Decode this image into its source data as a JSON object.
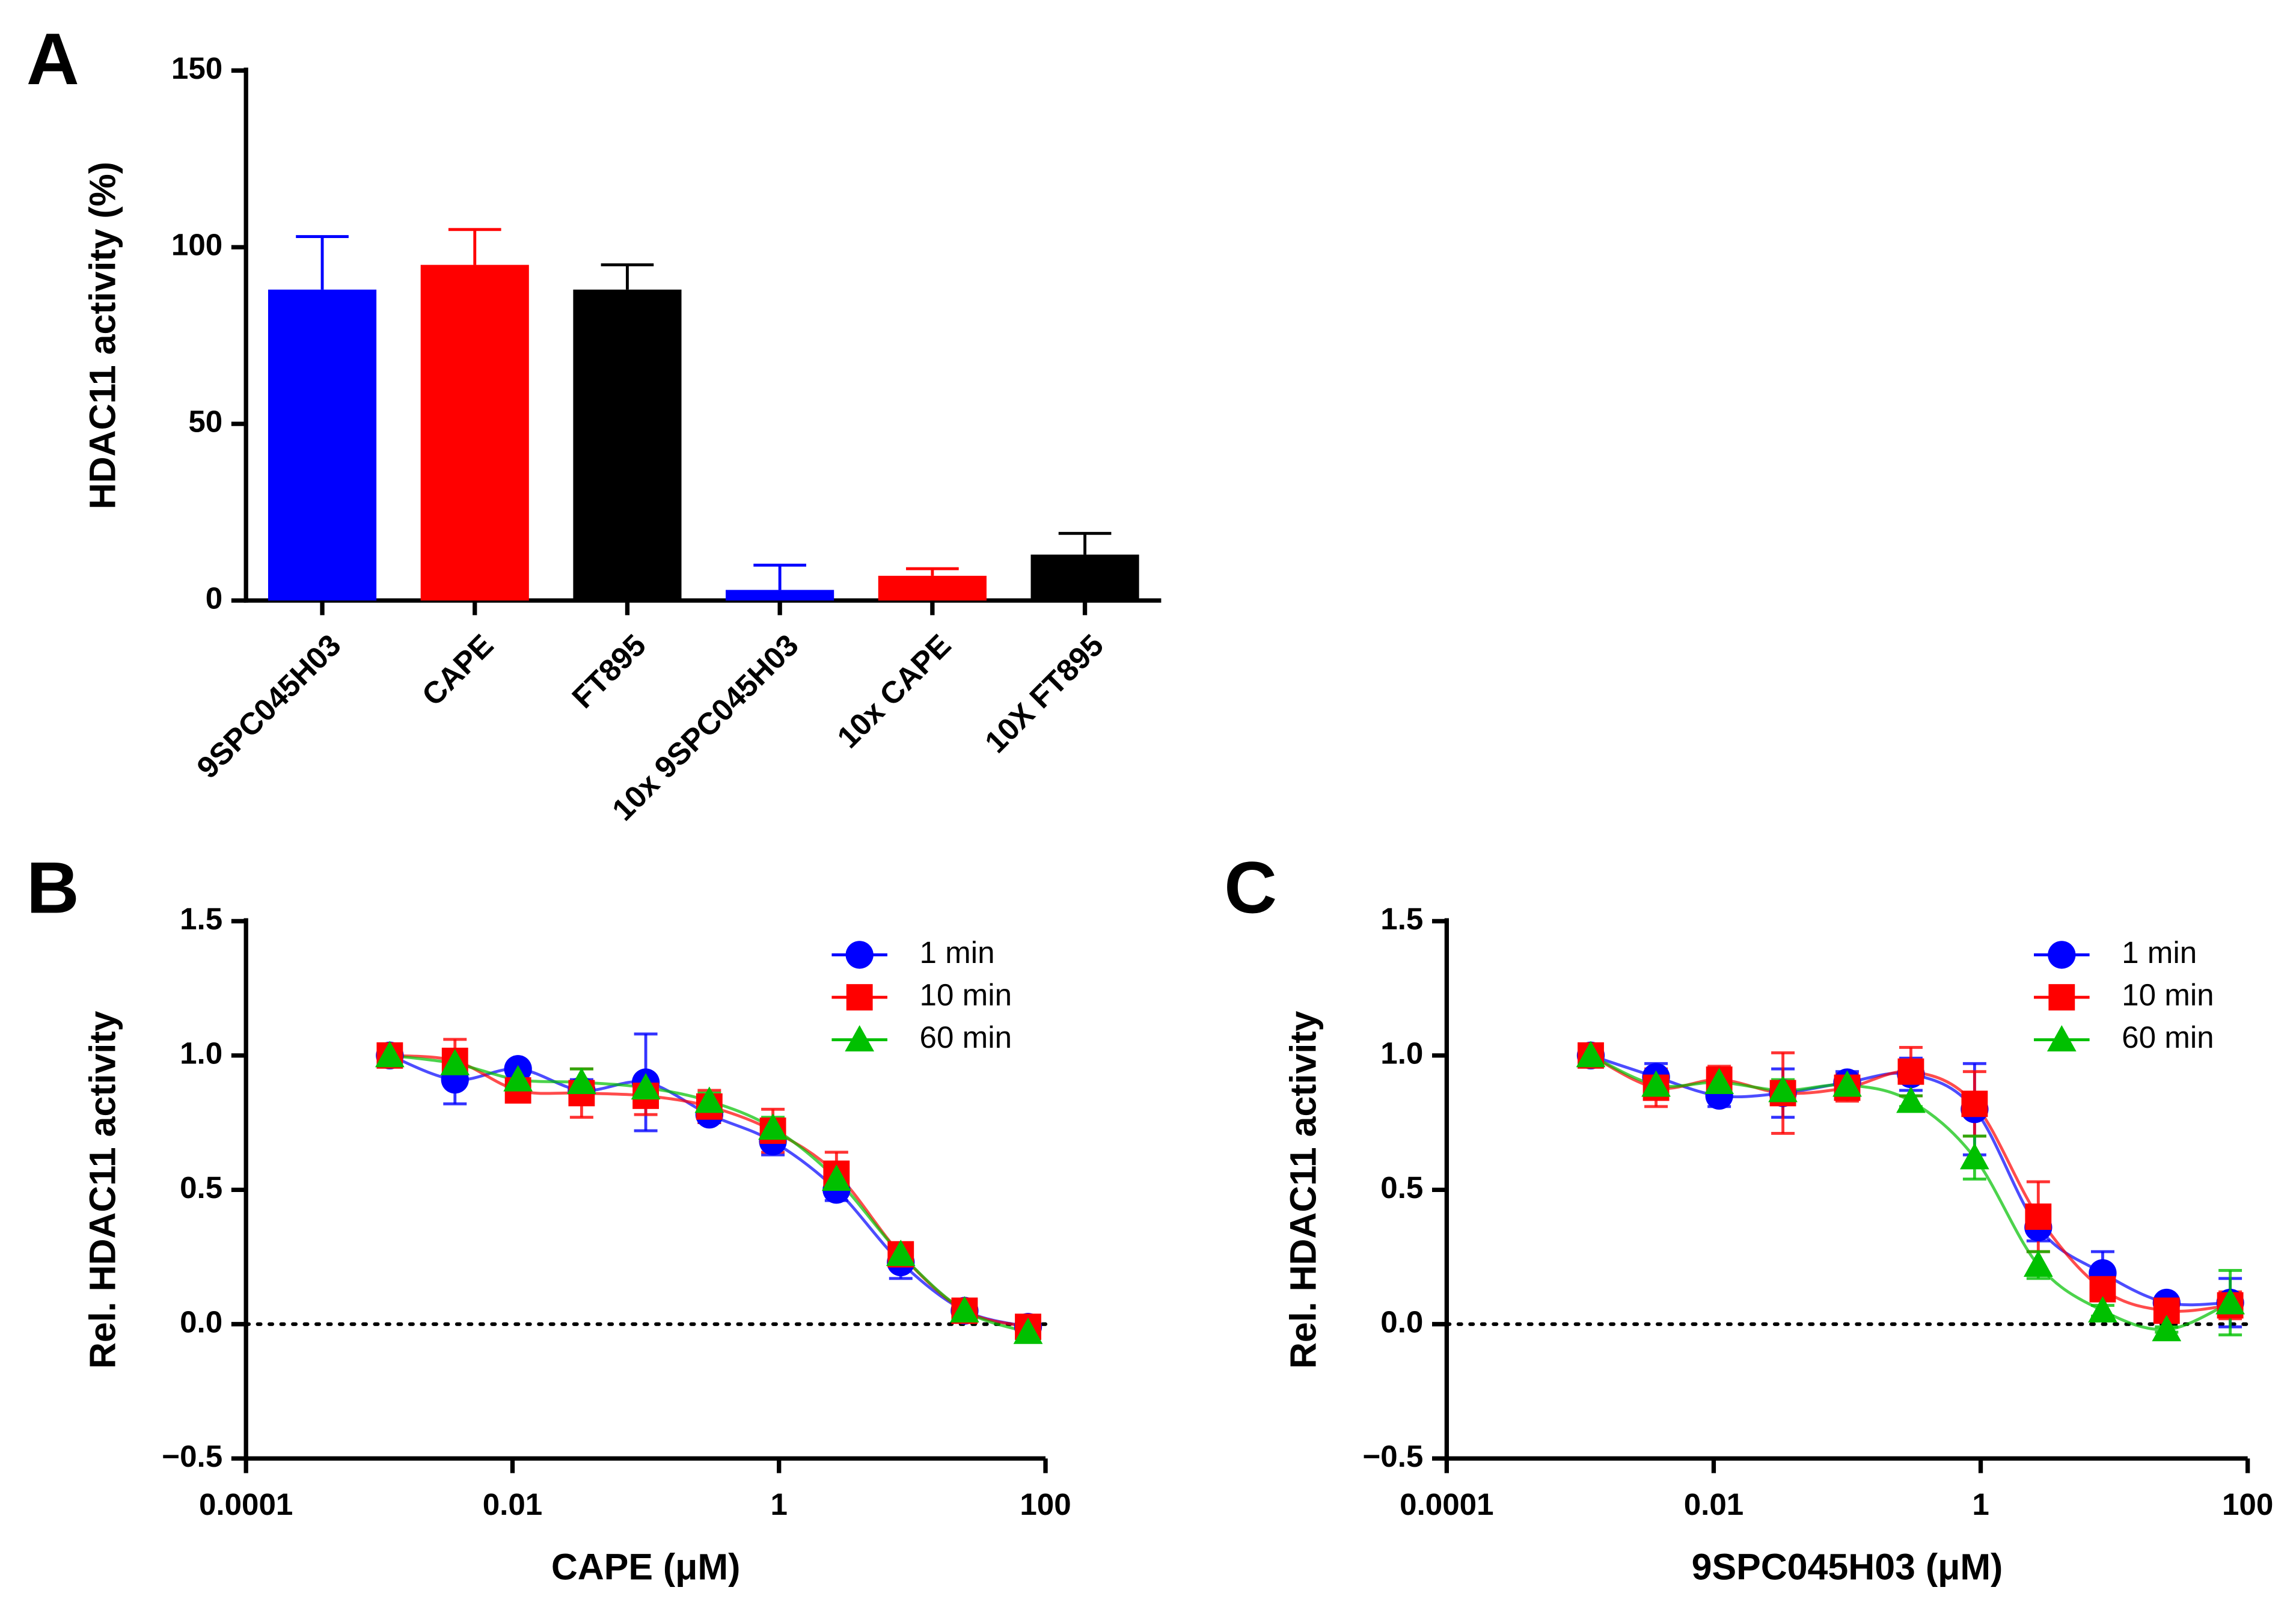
{
  "chart_data": [
    {
      "type": "bar",
      "panel_label": "A",
      "ylabel": "HDAC11 activity (%)",
      "categories": [
        "9SPC045H03",
        "CAPE",
        "FT895",
        "10x 9SPC045H03",
        "10x CAPE",
        "10X FT895"
      ],
      "values": [
        88,
        95,
        88,
        3,
        7,
        13
      ],
      "errors": [
        15,
        10,
        7,
        7,
        2,
        6
      ],
      "colors": [
        "#0000ff",
        "#ff0000",
        "#000000",
        "#0000ff",
        "#ff0000",
        "#000000"
      ],
      "ylim": [
        0,
        150
      ],
      "yticks": [
        0,
        50,
        100,
        150
      ]
    },
    {
      "type": "scatter",
      "panel_label": "B",
      "ylabel": "Rel. HDAC11 activity",
      "xlabel": "CAPE (μM)",
      "log_x": true,
      "legend": "upper right",
      "hline": 0,
      "x": [
        0.0012,
        0.0037,
        0.011,
        0.033,
        0.1,
        0.3,
        0.9,
        2.7,
        8.2,
        24.7,
        74
      ],
      "series": [
        {
          "name": "1 min",
          "color": "#0000ff",
          "marker": "circle",
          "values": [
            1.0,
            0.91,
            0.95,
            0.87,
            0.9,
            0.78,
            0.68,
            0.5,
            0.23,
            0.05,
            -0.01
          ],
          "errors": [
            0.02,
            0.09,
            0.02,
            0.04,
            0.18,
            0.03,
            0.05,
            0.04,
            0.06,
            0.02,
            0.02
          ]
        },
        {
          "name": "10 min",
          "color": "#ff0000",
          "marker": "square",
          "values": [
            1.0,
            0.98,
            0.87,
            0.86,
            0.85,
            0.81,
            0.72,
            0.56,
            0.26,
            0.05,
            -0.01
          ],
          "errors": [
            0.02,
            0.08,
            0.03,
            0.09,
            0.07,
            0.06,
            0.08,
            0.08,
            0.03,
            0.02,
            0.02
          ]
        },
        {
          "name": "60 min",
          "color": "#00c000",
          "marker": "triangle",
          "values": [
            1.0,
            0.97,
            0.91,
            0.9,
            0.88,
            0.83,
            0.73,
            0.54,
            0.26,
            0.05,
            -0.03
          ],
          "errors": [
            0.02,
            0.03,
            0.03,
            0.05,
            0.04,
            0.03,
            0.04,
            0.05,
            0.03,
            0.02,
            0.02
          ]
        }
      ],
      "xlim": [
        0.0001,
        100
      ],
      "xticks": [
        0.0001,
        0.01,
        1,
        100
      ],
      "ylim": [
        -0.5,
        1.5
      ],
      "yticks": [
        {
          "value": -0.5,
          "label": "−0.5"
        },
        {
          "value": 0,
          "label": "0.0"
        },
        {
          "value": 0.5,
          "label": "0.5"
        },
        {
          "value": 1,
          "label": "1.0"
        },
        {
          "value": 1.5,
          "label": "1.5"
        }
      ]
    },
    {
      "type": "scatter",
      "panel_label": "C",
      "ylabel": "Rel. HDAC11 activity",
      "xlabel": "9SPC045H03 (μM)",
      "log_x": true,
      "legend": "upper right",
      "hline": 0,
      "x": [
        0.0012,
        0.0037,
        0.011,
        0.033,
        0.1,
        0.3,
        0.9,
        2.7,
        8.2,
        24.7,
        74
      ],
      "series": [
        {
          "name": "1 min",
          "color": "#0000ff",
          "marker": "circle",
          "values": [
            1.0,
            0.92,
            0.85,
            0.86,
            0.9,
            0.93,
            0.8,
            0.36,
            0.19,
            0.08,
            0.08
          ],
          "errors": [
            0.02,
            0.05,
            0.04,
            0.09,
            0.04,
            0.06,
            0.17,
            0.05,
            0.08,
            0.02,
            0.09
          ]
        },
        {
          "name": "10 min",
          "color": "#ff0000",
          "marker": "square",
          "values": [
            1.0,
            0.88,
            0.91,
            0.86,
            0.88,
            0.94,
            0.82,
            0.4,
            0.13,
            0.05,
            0.07
          ],
          "errors": [
            0.02,
            0.07,
            0.05,
            0.15,
            0.05,
            0.09,
            0.12,
            0.13,
            0.04,
            0.02,
            0.05
          ]
        },
        {
          "name": "60 min",
          "color": "#00c000",
          "marker": "triangle",
          "values": [
            1.0,
            0.89,
            0.9,
            0.87,
            0.89,
            0.83,
            0.62,
            0.22,
            0.05,
            -0.02,
            0.08
          ],
          "errors": [
            0.02,
            0.04,
            0.03,
            0.04,
            0.03,
            0.02,
            0.08,
            0.05,
            0.02,
            0.01,
            0.12
          ]
        }
      ],
      "xlim": [
        0.0001,
        100
      ],
      "xticks": [
        0.0001,
        0.01,
        1,
        100
      ],
      "ylim": [
        -0.5,
        1.5
      ],
      "yticks": [
        {
          "value": -0.5,
          "label": "−0.5"
        },
        {
          "value": 0,
          "label": "0.0"
        },
        {
          "value": 0.5,
          "label": "0.5"
        },
        {
          "value": 1,
          "label": "1.0"
        },
        {
          "value": 1.5,
          "label": "1.5"
        }
      ]
    }
  ]
}
